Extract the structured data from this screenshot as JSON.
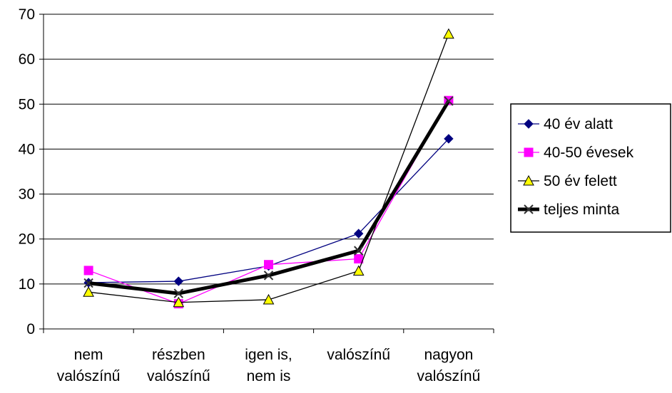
{
  "chart_data": {
    "type": "line",
    "categories": [
      [
        "nem",
        "valószínű"
      ],
      [
        "részben",
        "valószínű"
      ],
      [
        "igen is,",
        "nem is"
      ],
      [
        "valószínű"
      ],
      [
        "nagyon",
        "valószínű"
      ]
    ],
    "ylim": [
      0,
      70
    ],
    "yticks": [
      0,
      10,
      20,
      30,
      40,
      50,
      60,
      70
    ],
    "grid": true,
    "legend_placement": "right",
    "series": [
      {
        "name": "40 év alatt",
        "values": [
          10.3,
          10.6,
          14.0,
          21.2,
          42.3
        ],
        "color": "#000080",
        "marker": "diamond",
        "marker_fill": "#000080"
      },
      {
        "name": "40-50 évesek",
        "values": [
          13.0,
          5.6,
          14.3,
          15.6,
          50.8
        ],
        "color": "#ff00ff",
        "marker": "square",
        "marker_fill": "#ff00ff"
      },
      {
        "name": "50 év felett",
        "values": [
          8.2,
          5.9,
          6.5,
          12.9,
          65.6
        ],
        "color": "#000000",
        "marker": "triangle",
        "marker_fill": "#ffff00"
      },
      {
        "name": "teljes minta",
        "values": [
          10.2,
          7.9,
          11.9,
          17.4,
          50.7
        ],
        "color": "#000000",
        "marker": "x",
        "marker_fill": "#333333",
        "bold": true
      }
    ]
  }
}
